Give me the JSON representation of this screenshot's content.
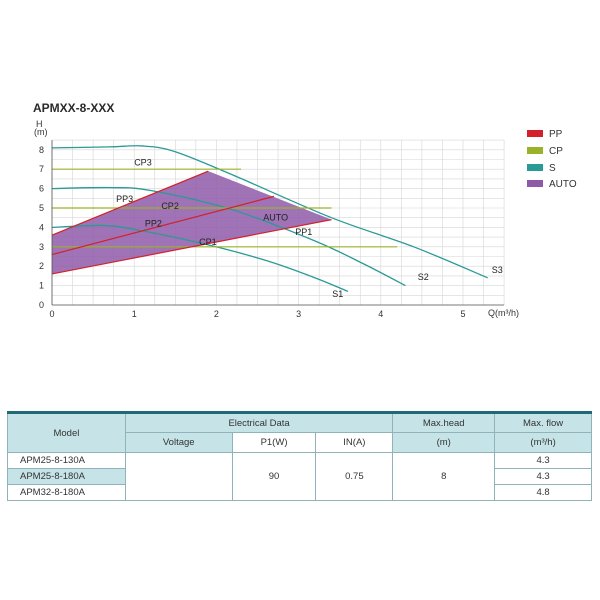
{
  "title": "APMXX-8-XXX",
  "chart_data": {
    "type": "line",
    "xlabel": "Q(m³/h)",
    "ylabel_top": "H",
    "ylabel_unit": "(m)",
    "xlim": [
      0,
      5.5
    ],
    "ylim": [
      0,
      8.5
    ],
    "x_ticks": [
      "0",
      "1",
      "2",
      "3",
      "4",
      "5"
    ],
    "y_ticks": [
      "0",
      "1",
      "2",
      "3",
      "4",
      "5",
      "6",
      "7",
      "8"
    ],
    "grid": true,
    "legend_position": "right",
    "legend": [
      {
        "label": "PP",
        "color": "#d4202a"
      },
      {
        "label": "CP",
        "color": "#9ab22a"
      },
      {
        "label": "S",
        "color": "#2a9a96"
      },
      {
        "label": "AUTO",
        "color": "#8e5aa8"
      }
    ],
    "series": [
      {
        "name": "S1",
        "type": "S",
        "points": [
          [
            0,
            4
          ],
          [
            0.6,
            4.1
          ],
          [
            1.0,
            3.9
          ],
          [
            1.8,
            3.2
          ],
          [
            2.6,
            2.3
          ],
          [
            3.2,
            1.4
          ],
          [
            3.6,
            0.7
          ]
        ]
      },
      {
        "name": "S2",
        "type": "S",
        "points": [
          [
            0,
            6
          ],
          [
            0.7,
            6.05
          ],
          [
            1.2,
            5.9
          ],
          [
            2.2,
            4.9
          ],
          [
            3.2,
            3.3
          ],
          [
            3.8,
            2.1
          ],
          [
            4.3,
            1.0
          ]
        ]
      },
      {
        "name": "S3",
        "type": "S",
        "points": [
          [
            0,
            8.1
          ],
          [
            0.7,
            8.15
          ],
          [
            1.1,
            8.2
          ],
          [
            1.5,
            7.9
          ],
          [
            2.2,
            6.7
          ],
          [
            3.4,
            4.5
          ],
          [
            4.4,
            3.0
          ],
          [
            5.3,
            1.4
          ]
        ]
      },
      {
        "name": "CP1",
        "type": "CP",
        "points": [
          [
            0,
            3
          ],
          [
            4.2,
            3
          ]
        ]
      },
      {
        "name": "CP2",
        "type": "CP",
        "points": [
          [
            0,
            5
          ],
          [
            3.4,
            5
          ]
        ]
      },
      {
        "name": "CP3",
        "type": "CP",
        "points": [
          [
            0,
            7
          ],
          [
            2.3,
            7
          ]
        ]
      },
      {
        "name": "PP1",
        "type": "PP",
        "points": [
          [
            0,
            1.6
          ],
          [
            3.4,
            4.4
          ]
        ]
      },
      {
        "name": "PP2",
        "type": "PP",
        "points": [
          [
            0,
            2.6
          ],
          [
            2.7,
            5.6
          ]
        ]
      },
      {
        "name": "PP3",
        "type": "PP",
        "points": [
          [
            0,
            3.6
          ],
          [
            1.9,
            6.9
          ]
        ]
      }
    ],
    "auto_region": [
      [
        0,
        1.6
      ],
      [
        0,
        3.6
      ],
      [
        1.9,
        6.9
      ],
      [
        3.4,
        4.4
      ]
    ],
    "curve_labels": [
      {
        "text": "CP3",
        "x": 1.0,
        "y": 7.2
      },
      {
        "text": "PP3",
        "x": 0.78,
        "y": 5.3
      },
      {
        "text": "CP2",
        "x": 1.33,
        "y": 4.95
      },
      {
        "text": "PP2",
        "x": 1.13,
        "y": 4.05
      },
      {
        "text": "AUTO",
        "x": 2.57,
        "y": 4.35
      },
      {
        "text": "CP1",
        "x": 1.79,
        "y": 3.1
      },
      {
        "text": "PP1",
        "x": 2.96,
        "y": 3.6
      },
      {
        "text": "S3",
        "x": 5.35,
        "y": 1.65
      },
      {
        "text": "S2",
        "x": 4.45,
        "y": 1.3
      },
      {
        "text": "S1",
        "x": 3.41,
        "y": 0.4
      }
    ]
  },
  "table": {
    "header": {
      "model": "Model",
      "electrical": "Electrical Data",
      "max_head": "Max.head",
      "max_flow": "Max. flow",
      "voltage": "Voltage",
      "p1": "P1(W)",
      "in": "IN(A)",
      "head_unit": "(m)",
      "flow_unit": "(m³/h)"
    },
    "rows": [
      {
        "model": "APM25-8-130A",
        "flow": "4.3"
      },
      {
        "model": "APM25-8-180A",
        "flow": "4.3"
      },
      {
        "model": "APM32-8-180A",
        "flow": "4.8"
      }
    ],
    "shared": {
      "voltage": "",
      "p1": "90",
      "in": "0.75",
      "head": "8"
    }
  }
}
